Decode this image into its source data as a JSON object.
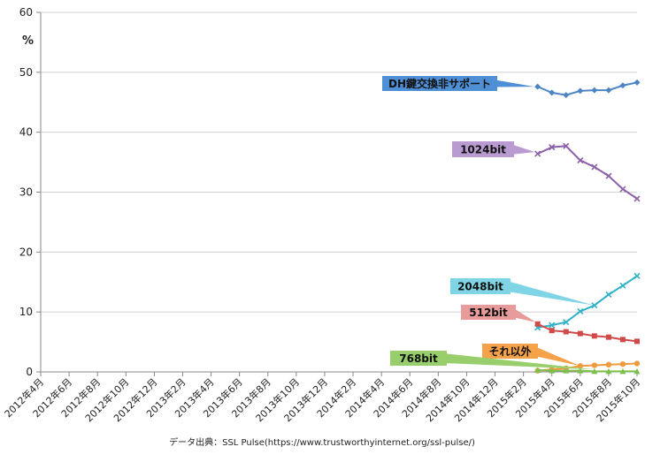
{
  "chart_data": {
    "type": "line",
    "ylabel": "%",
    "ylim": [
      0,
      60
    ],
    "yticks": [
      "0",
      "10",
      "20",
      "30",
      "40",
      "50",
      "60"
    ],
    "grid": true,
    "categories": [
      "2012年4月",
      "2012年6月",
      "2012年8月",
      "2012年10月",
      "2012年12月",
      "2013年2月",
      "2013年4月",
      "2013年6月",
      "2013年8月",
      "2013年10月",
      "2013年12月",
      "2014年2月",
      "2014年4月",
      "2014年6月",
      "2014年8月",
      "2014年10月",
      "2014年12月",
      "2015年2月",
      "2015年4月",
      "2015年6月",
      "2015年8月",
      "2015年10月"
    ],
    "x": [
      "2015年3月",
      "2015年4月",
      "2015年5月",
      "2015年6月",
      "2015年7月",
      "2015年8月",
      "2015年9月",
      "2015年10月"
    ],
    "series": [
      {
        "name": "DH鍵交換非サポート",
        "color": "#4d84c4",
        "marker": "diamond",
        "values": [
          47.6,
          46.6,
          46.2,
          46.9,
          47.0,
          47.0,
          47.8,
          48.3
        ]
      },
      {
        "name": "1024bit",
        "color": "#8c5fa8",
        "marker": "x",
        "values": [
          36.4,
          37.5,
          37.7,
          35.3,
          34.2,
          32.7,
          30.5,
          28.9
        ]
      },
      {
        "name": "2048bit",
        "color": "#2fb1c6",
        "marker": "x",
        "values": [
          7.4,
          7.8,
          8.3,
          10.1,
          11.1,
          12.9,
          14.4,
          16.0
        ]
      },
      {
        "name": "512bit",
        "color": "#d14a4a",
        "marker": "square",
        "values": [
          8.0,
          6.9,
          6.7,
          6.4,
          6.0,
          5.8,
          5.4,
          5.1
        ]
      },
      {
        "name": "それ以外",
        "color": "#f09a3e",
        "marker": "circle",
        "values": [
          0.2,
          0.4,
          0.6,
          1.0,
          1.1,
          1.2,
          1.3,
          1.4
        ]
      },
      {
        "name": "768bit",
        "color": "#7fbf4d",
        "marker": "triangle",
        "values": [
          0.3,
          0.2,
          0.2,
          0.2,
          0.1,
          0.1,
          0.1,
          0.1
        ]
      }
    ],
    "callout_colors": {
      "DH鍵交換非サポート": "#4f8fd6",
      "1024bit": "#b99bd1",
      "2048bit": "#7fd5e6",
      "512bit": "#e79b9b",
      "それ以外": "#f5a24a",
      "768bit": "#98cf6c"
    },
    "source": "データ出典：SSL Pulse(https://www.trustworthyinternet.org/ssl-pulse/)"
  }
}
